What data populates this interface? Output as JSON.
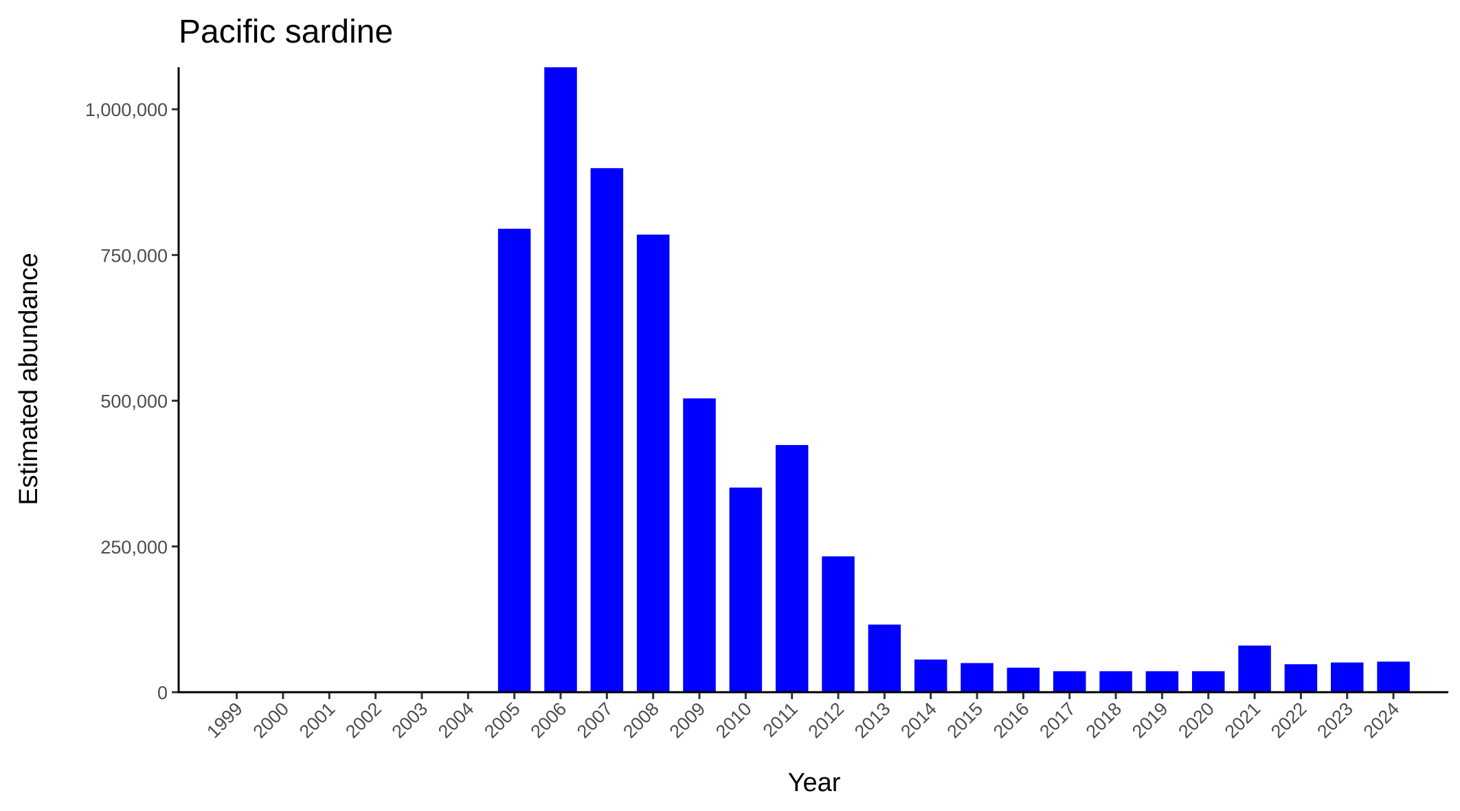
{
  "chart_data": {
    "type": "bar",
    "title": "Pacific sardine",
    "xlabel": "Year",
    "ylabel": "Estimated abundance",
    "categories": [
      "1999",
      "2000",
      "2001",
      "2002",
      "2003",
      "2004",
      "2005",
      "2006",
      "2007",
      "2008",
      "2009",
      "2010",
      "2011",
      "2012",
      "2013",
      "2014",
      "2015",
      "2016",
      "2017",
      "2018",
      "2019",
      "2020",
      "2021",
      "2022",
      "2023",
      "2024"
    ],
    "values": [
      0,
      0,
      0,
      0,
      0,
      0,
      795000,
      1072000,
      899000,
      785000,
      504000,
      351000,
      424000,
      233000,
      116000,
      56000,
      50000,
      42000,
      36000,
      36000,
      36000,
      36000,
      80000,
      48000,
      51000,
      52500
    ],
    "ylim": [
      0,
      1072000
    ],
    "yticks": [
      0,
      250000,
      500000,
      750000,
      1000000
    ],
    "ytick_labels": [
      "0",
      "250,000",
      "500,000",
      "750,000",
      "1,000,000"
    ],
    "grid": false,
    "bar_color": "#0000FF"
  }
}
